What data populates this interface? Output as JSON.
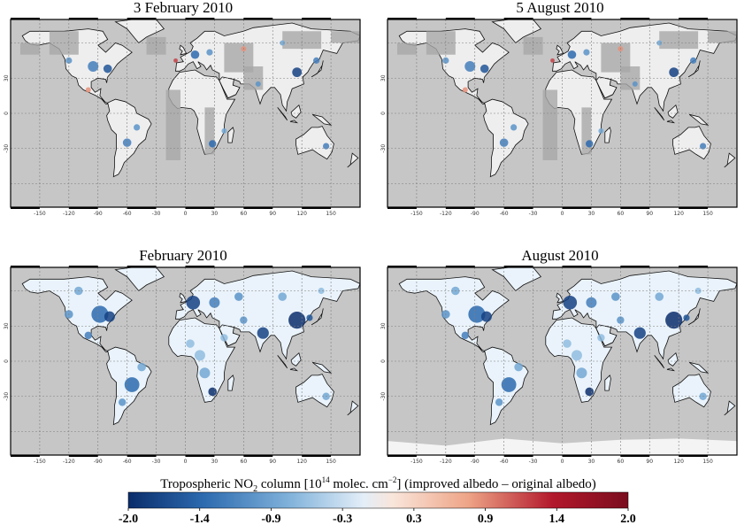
{
  "colors": {
    "ocean": "#c6c6c6",
    "grid": "#7d7d7d",
    "scale": [
      "#0a2d6b",
      "#2c6aaf",
      "#7fb1da",
      "#e3eef8",
      "#f9e5da",
      "#eea487",
      "#b2182b",
      "#7a0d1e"
    ]
  },
  "panels": [
    {
      "id": "p1",
      "title": "3 February 2010",
      "x_ticks": [
        "-150",
        "-120",
        "-90",
        "-60",
        "-30",
        "0",
        "30",
        "60",
        "90",
        "120",
        "150"
      ],
      "y_ticks": [
        "30",
        "0",
        "-30"
      ],
      "land_fill": "#eeeeee",
      "coverage": "sparse"
    },
    {
      "id": "p2",
      "title": "5 August 2010",
      "x_ticks": [
        "-150",
        "-120",
        "-90",
        "-60",
        "-30",
        "0",
        "30",
        "60",
        "90",
        "120",
        "150"
      ],
      "y_ticks": [
        "30",
        "0",
        "-30"
      ],
      "land_fill": "#eeeeee",
      "coverage": "sparse"
    },
    {
      "id": "p3",
      "title": "February 2010",
      "x_ticks": [
        "-150",
        "-120",
        "-90",
        "-60",
        "-30",
        "0",
        "30",
        "60",
        "90",
        "120",
        "150"
      ],
      "y_ticks": [
        "30",
        "0",
        "-30"
      ],
      "land_fill": "#eaf3fb",
      "coverage": "full"
    },
    {
      "id": "p4",
      "title": "August 2010",
      "x_ticks": [
        "-150",
        "-120",
        "-90",
        "-60",
        "-30",
        "0",
        "30",
        "60",
        "90",
        "120",
        "150"
      ],
      "y_ticks": [
        "30",
        "0",
        "-30"
      ],
      "land_fill": "#eaf3fb",
      "coverage": "full"
    }
  ],
  "legend": {
    "title_main": "Tropospheric NO",
    "title_sub": "2",
    "title_mid": " column [10",
    "title_sup1": "14",
    "title_mid2": " molec. cm",
    "title_sup2": "−2",
    "title_end": "] (improved albedo – original albedo)",
    "labels": [
      "-2.0",
      "-1.4",
      "-0.9",
      "-0.3",
      "0.3",
      "0.9",
      "1.4",
      "2.0"
    ]
  }
}
